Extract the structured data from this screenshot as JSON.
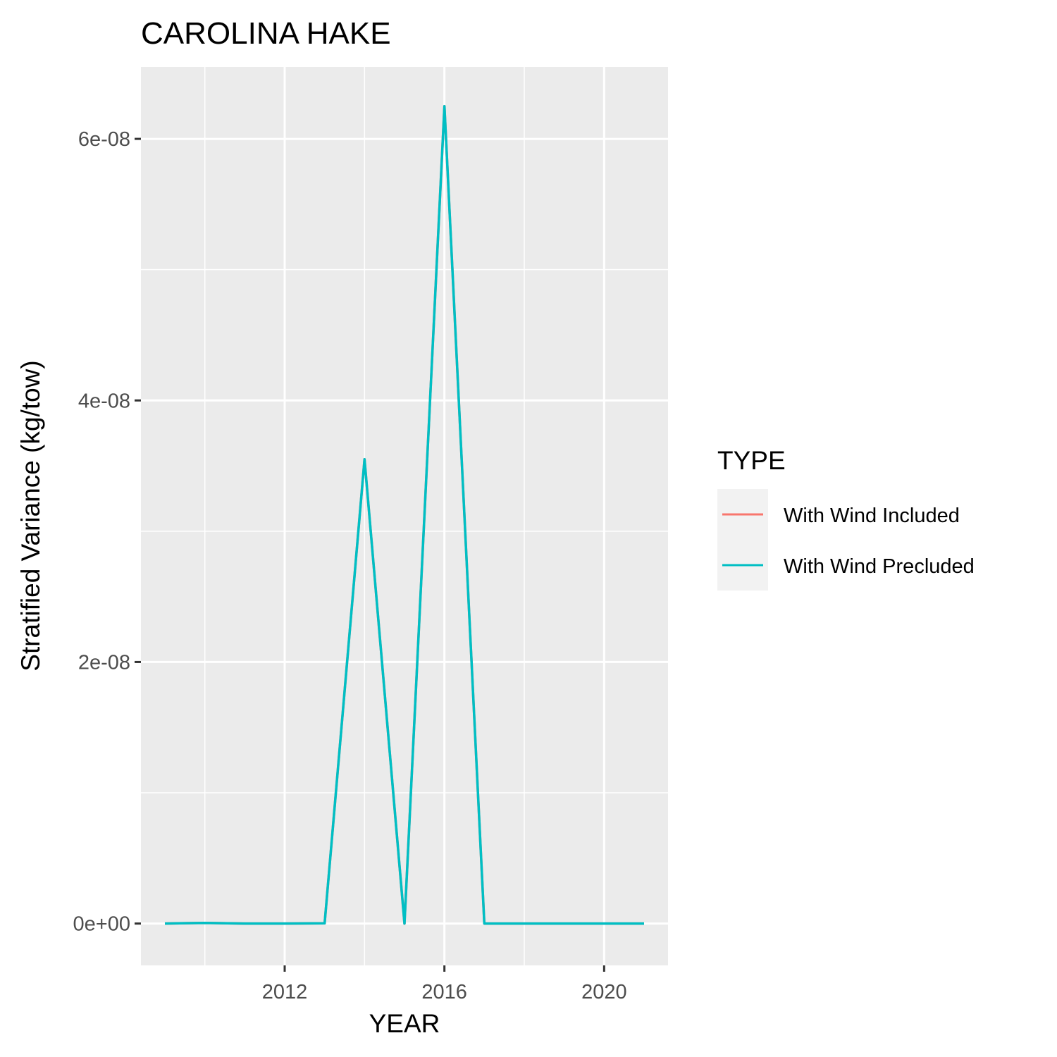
{
  "chart_data": {
    "type": "line",
    "title": "CAROLINA HAKE",
    "xlabel": "YEAR",
    "ylabel": "Stratified Variance (kg/tow)",
    "x": [
      2009,
      2010,
      2011,
      2012,
      2013,
      2014,
      2015,
      2016,
      2017,
      2018,
      2019,
      2020,
      2021
    ],
    "xlim": [
      2008.4,
      2021.6
    ],
    "ylim": [
      -3.2e-09,
      6.55e-08
    ],
    "x_ticks": [
      2012,
      2016,
      2020
    ],
    "x_tick_labels": [
      "2012",
      "2016",
      "2020"
    ],
    "y_ticks": [
      0,
      2e-08,
      4e-08,
      6e-08
    ],
    "y_tick_labels": [
      "0e+00",
      "2e-08",
      "4e-08",
      "6e-08"
    ],
    "grid": true,
    "legend_position": "right",
    "legend_title": "TYPE",
    "series": [
      {
        "name": "With Wind Included",
        "color": "#F8766D",
        "values": [
          0,
          5e-11,
          0,
          0,
          2e-11,
          3.55e-08,
          0,
          6.25e-08,
          0,
          0,
          0,
          0,
          0
        ]
      },
      {
        "name": "With Wind Precluded",
        "color": "#00BFC4",
        "values": [
          0,
          5e-11,
          0,
          0,
          2e-11,
          3.55e-08,
          0,
          6.25e-08,
          0,
          0,
          0,
          0,
          0
        ]
      }
    ]
  }
}
